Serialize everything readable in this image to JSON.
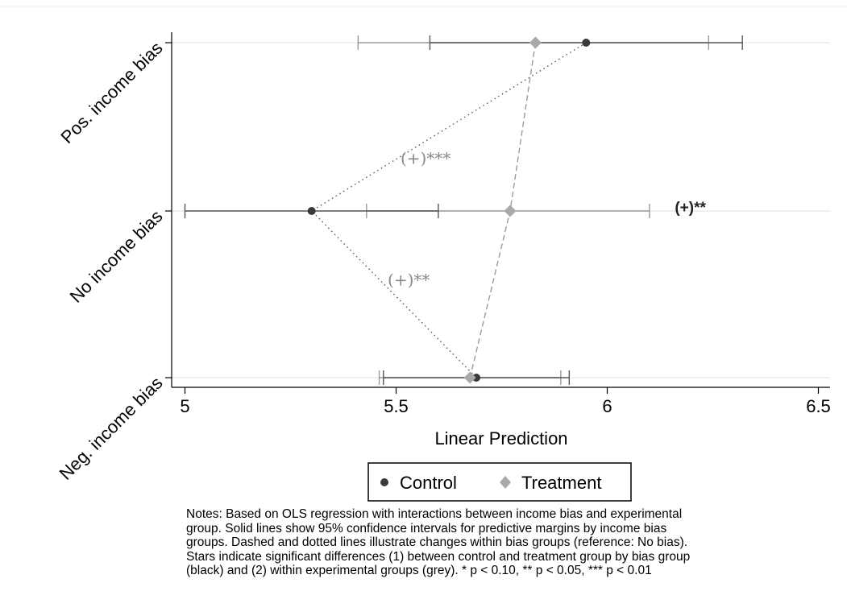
{
  "chart_data": {
    "type": "scatter",
    "title": "",
    "xlabel": "Linear Prediction",
    "ylabel": "",
    "xlim": [
      5,
      6.5
    ],
    "xticks": [
      5,
      5.5,
      6,
      6.5
    ],
    "xtick_labels": [
      "5",
      "5.5",
      "6",
      "6.5"
    ],
    "categories": [
      "Pos. income bias",
      "No income bias",
      "Neg. income bias"
    ],
    "grid": true,
    "legend_position": "bottom",
    "series": [
      {
        "name": "Control",
        "color": "#3a3a3a",
        "marker": "circle",
        "connector": "dotted",
        "points": [
          {
            "category": "Pos. income bias",
            "x": 5.95,
            "ci": [
              5.58,
              6.32
            ]
          },
          {
            "category": "No income bias",
            "x": 5.3,
            "ci": [
              5.0,
              5.6
            ]
          },
          {
            "category": "Neg. income bias",
            "x": 5.69,
            "ci": [
              5.47,
              5.91
            ]
          }
        ]
      },
      {
        "name": "Treatment",
        "color": "#a9a9a9",
        "marker": "diamond",
        "connector": "dashed",
        "points": [
          {
            "category": "Pos. income bias",
            "x": 5.83,
            "ci": [
              5.41,
              6.24
            ]
          },
          {
            "category": "No income bias",
            "x": 5.77,
            "ci": [
              5.43,
              6.1
            ]
          },
          {
            "category": "Neg. income bias",
            "x": 5.675,
            "ci": [
              5.46,
              5.89
            ]
          }
        ]
      }
    ],
    "annotations": [
      {
        "text": "(+)***",
        "color": "#888888",
        "x": 5.57,
        "between": [
          "Pos. income bias",
          "No income bias"
        ]
      },
      {
        "text": "(+)**",
        "color": "#888888",
        "x": 5.53,
        "between": [
          "No income bias",
          "Neg. income bias"
        ]
      },
      {
        "text": "(+)**",
        "color": "#222222",
        "x": 6.16,
        "category": "No income bias"
      }
    ]
  },
  "notes": [
    "Notes: Based on OLS regression with interactions between income bias and experimental",
    "group. Solid lines show 95% confidence intervals for predictive margins by income bias",
    "groups. Dashed and dotted lines illustrate changes within bias groups (reference: No bias).",
    "Stars indicate significant differences (1) between control and treatment group by bias group",
    "(black) and (2) within experimental groups (grey). * p < 0.10, ** p < 0.05, *** p < 0.01"
  ]
}
